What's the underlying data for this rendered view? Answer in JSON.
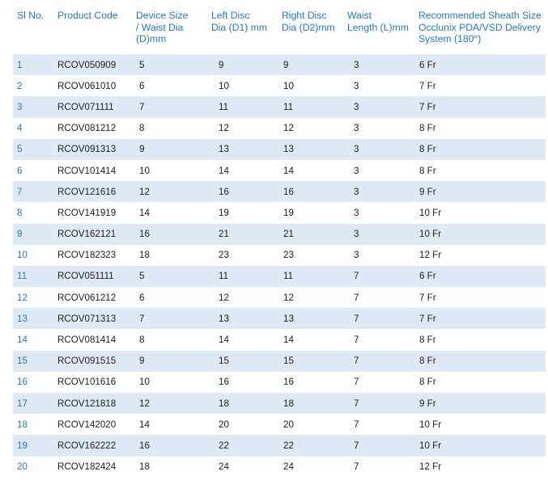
{
  "table": {
    "headers": {
      "sl": [
        "Sl No."
      ],
      "code": [
        "Product Code"
      ],
      "dev": [
        "Device Size",
        "/ Waist Dia",
        "(D)mm"
      ],
      "left": [
        "Left Disc",
        "Dia (D1) mm"
      ],
      "right": [
        "Right Disc",
        "Dia (D2)mm"
      ],
      "waist": [
        "Waist",
        "Length (L)mm"
      ],
      "sheath": [
        "Recommended Sheath Size",
        "Occlunix PDA/VSD Delivery",
        "System (180°)"
      ]
    },
    "rows": [
      [
        "1",
        "RCOV050909",
        "5",
        "9",
        "9",
        "3",
        "6 Fr"
      ],
      [
        "2",
        "RCOV061010",
        "6",
        "10",
        "10",
        "3",
        "7 Fr"
      ],
      [
        "3",
        "RCOV071111",
        "7",
        "11",
        "11",
        "3",
        "7 Fr"
      ],
      [
        "4",
        "RCOV081212",
        "8",
        "12",
        "12",
        "3",
        "8 Fr"
      ],
      [
        "5",
        "RCOV091313",
        "9",
        "13",
        "13",
        "3",
        "8 Fr"
      ],
      [
        "6",
        "RCOV101414",
        "10",
        "14",
        "14",
        "3",
        "8 Fr"
      ],
      [
        "7",
        "RCOV121616",
        "12",
        "16",
        "16",
        "3",
        "9 Fr"
      ],
      [
        "8",
        "RCOV141919",
        "14",
        "19",
        "19",
        "3",
        "10 Fr"
      ],
      [
        "9",
        "RCOV162121",
        "16",
        "21",
        "21",
        "3",
        "10 Fr"
      ],
      [
        "10",
        "RCOV182323",
        "18",
        "23",
        "23",
        "3",
        "12 Fr"
      ],
      [
        "11",
        "RCOV051111",
        "5",
        "11",
        "11",
        "7",
        "6 Fr"
      ],
      [
        "12",
        "RCOV061212",
        "6",
        "12",
        "12",
        "7",
        "7 Fr"
      ],
      [
        "13",
        "RCOV071313",
        "7",
        "13",
        "13",
        "7",
        "7 Fr"
      ],
      [
        "14",
        "RCOV081414",
        "8",
        "14",
        "14",
        "7",
        "8 Fr"
      ],
      [
        "15",
        "RCOV091515",
        "9",
        "15",
        "15",
        "7",
        "8 Fr"
      ],
      [
        "16",
        "RCOV101616",
        "10",
        "16",
        "16",
        "7",
        "8 Fr"
      ],
      [
        "17",
        "RCOV121818",
        "12",
        "18",
        "18",
        "7",
        "9 Fr"
      ],
      [
        "18",
        "RCOV142020",
        "14",
        "20",
        "20",
        "7",
        "10 Fr"
      ],
      [
        "19",
        "RCOV162222",
        "16",
        "22",
        "22",
        "7",
        "10 Fr"
      ],
      [
        "20",
        "RCOV182424",
        "18",
        "24",
        "24",
        "7",
        "12 Fr"
      ]
    ]
  },
  "colors": {
    "header_text": "#2a7ab8",
    "row_band": "#dfe9f4",
    "row_plain": "#ffffff",
    "cell_text": "#222222"
  }
}
